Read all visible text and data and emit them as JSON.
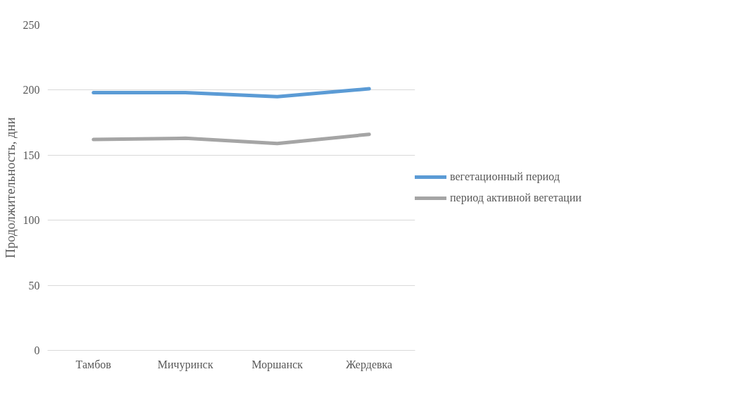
{
  "chart_data": {
    "type": "line",
    "ylabel": "Продолжительность, дни",
    "categories": [
      "Тамбов",
      "Мичуринск",
      "Моршанск",
      "Жердевка"
    ],
    "series": [
      {
        "name": "вегетационный период",
        "color": "#5b9bd5",
        "values": [
          198,
          198,
          195,
          201
        ]
      },
      {
        "name": "период активной вегетации",
        "color": "#a5a5a5",
        "values": [
          162,
          163,
          159,
          166
        ]
      }
    ],
    "ylim": [
      0,
      250
    ],
    "yticks": [
      0,
      50,
      100,
      150,
      200,
      250
    ],
    "grid": "y",
    "legend": "right",
    "line_style": "solid",
    "marker": "none"
  }
}
